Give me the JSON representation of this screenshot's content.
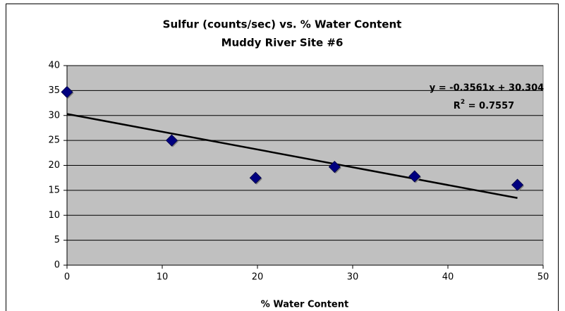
{
  "chart_data": {
    "type": "scatter",
    "title": "Sulfur (counts/sec) vs. % Water Content",
    "subtitle": "Muddy River Site #6",
    "x_label": "% Water Content",
    "x": [
      0,
      11,
      19.8,
      28.1,
      36.5,
      47.3
    ],
    "values": [
      34.7,
      25,
      17.5,
      19.7,
      17.8,
      16.1
    ],
    "color": "#000080",
    "xlim": [
      0,
      50
    ],
    "xticks": [
      0,
      10,
      20,
      30,
      40,
      50
    ],
    "ylim": [
      0,
      40
    ],
    "yticks": [
      0,
      5,
      10,
      15,
      20,
      25,
      30,
      35,
      40
    ],
    "grid": true,
    "plot_background": "#c0c0c0",
    "trendline": {
      "x": [
        0,
        47.3
      ],
      "values": [
        30.304,
        13.46
      ],
      "color": "#000000",
      "equation": "y = -0.3561x + 30.304",
      "r_squared": {
        "symbol": "R",
        "exponent": "2",
        "text": " = 0.7557"
      }
    }
  }
}
